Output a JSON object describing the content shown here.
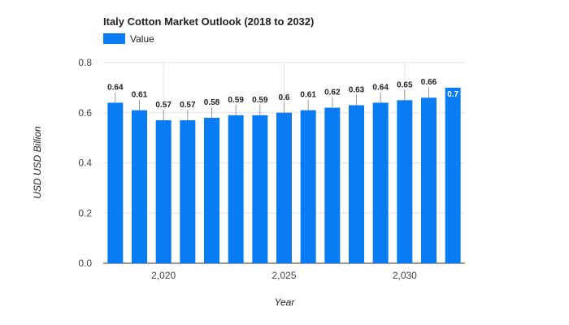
{
  "chart_data": {
    "type": "bar",
    "title": "Italy Cotton Market Outlook (2018 to 2032)",
    "xlabel": "Year",
    "ylabel": "USD USD Billion",
    "x": [
      2018,
      2019,
      2020,
      2021,
      2022,
      2023,
      2024,
      2025,
      2026,
      2027,
      2028,
      2029,
      2030,
      2031,
      2032
    ],
    "series": [
      {
        "name": "Value",
        "color": "#0a7cf3",
        "values": [
          0.64,
          0.61,
          0.57,
          0.57,
          0.58,
          0.59,
          0.59,
          0.6,
          0.61,
          0.62,
          0.63,
          0.64,
          0.65,
          0.66,
          0.7
        ],
        "data_labels": [
          "0.64",
          "0.61",
          "0.57",
          "0.57",
          "0.58",
          "0.59",
          "0.59",
          "0.6",
          "0.61",
          "0.62",
          "0.63",
          "0.64",
          "0.65",
          "0.66",
          "0.7"
        ]
      }
    ],
    "ylim": [
      0,
      0.8
    ],
    "yticks": [
      "0.0",
      "0.2",
      "0.4",
      "0.6",
      "0.8"
    ],
    "xticks": [
      {
        "x": 2020,
        "label": "2,020"
      },
      {
        "x": 2025,
        "label": "2,025"
      },
      {
        "x": 2030,
        "label": "2,030"
      }
    ],
    "grid": true,
    "legend_position": "top-left"
  }
}
